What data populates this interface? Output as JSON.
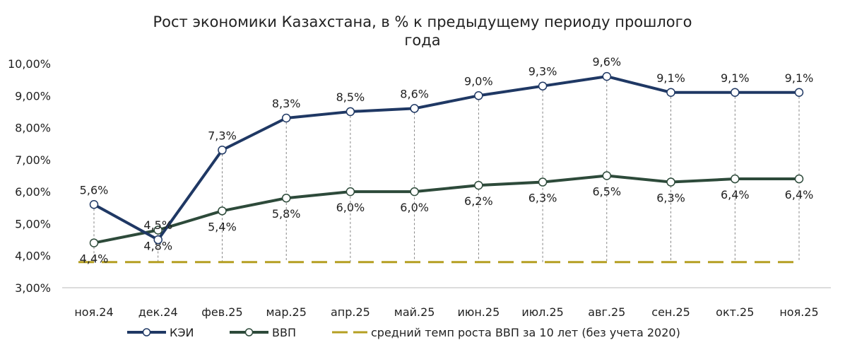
{
  "chart_data": {
    "type": "line",
    "title": "Рост экономики Казахстана, в % к предыдущему периоду прошлого года",
    "title_lines": [
      "Рост экономики Казахстана, в % к предыдущему периоду прошлого",
      "года"
    ],
    "categories": [
      "ноя.24",
      "дек.24",
      "фев.25",
      "мар.25",
      "апр.25",
      "май.25",
      "июн.25",
      "июл.25",
      "авг.25",
      "сен.25",
      "окт.25",
      "ноя.25"
    ],
    "ylim": [
      3,
      10
    ],
    "yticks": [
      3,
      4,
      5,
      6,
      7,
      8,
      9,
      10
    ],
    "ytick_labels": [
      "3,00%",
      "4,00%",
      "5,00%",
      "6,00%",
      "7,00%",
      "8,00%",
      "9,00%",
      "10,00%"
    ],
    "grid": false,
    "legend_placement": "bottom",
    "series": [
      {
        "name": "КЭИ",
        "color": "#1f3864",
        "values": [
          5.6,
          4.5,
          7.3,
          8.3,
          8.5,
          8.6,
          9.0,
          9.3,
          9.6,
          9.1,
          9.1,
          9.1
        ],
        "labels": [
          "5,6%",
          "4,5%",
          "7,3%",
          "8,3%",
          "8,5%",
          "8,6%",
          "9,0%",
          "9,3%",
          "9,6%",
          "9,1%",
          "9,1%",
          "9,1%"
        ],
        "label_position": "above"
      },
      {
        "name": "ВВП",
        "color": "#2d4a3a",
        "values": [
          4.4,
          4.8,
          5.4,
          5.8,
          6.0,
          6.0,
          6.2,
          6.3,
          6.5,
          6.3,
          6.4,
          6.4
        ],
        "labels": [
          "4,4%",
          "4,8%",
          "5,4%",
          "5,8%",
          "6,0%",
          "6,0%",
          "6,2%",
          "6,3%",
          "6,5%",
          "6,3%",
          "6,4%",
          "6,4%"
        ],
        "label_position": "below"
      },
      {
        "name": "средний темп роста ВВП за 10 лет (без учета 2020)",
        "color": "#b59f22",
        "style": "dashed",
        "values": [
          3.8,
          3.8,
          3.8,
          3.8,
          3.8,
          3.8,
          3.8,
          3.8,
          3.8,
          3.8,
          3.8,
          3.8
        ]
      }
    ]
  }
}
